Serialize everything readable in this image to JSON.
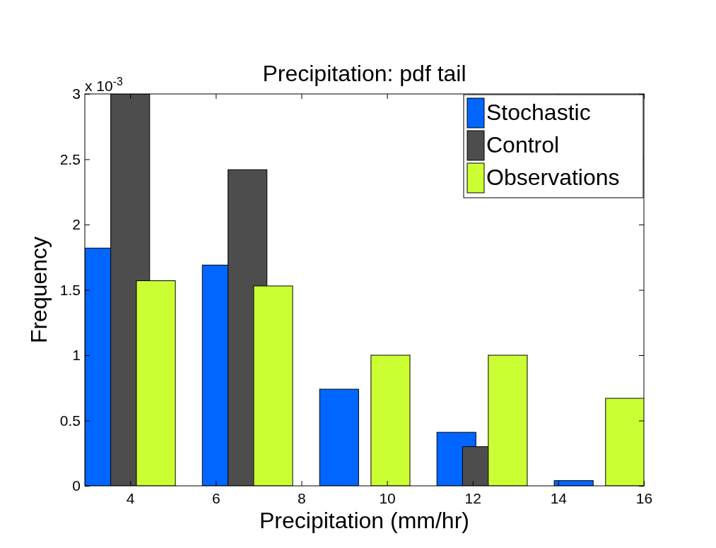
{
  "chart_data": {
    "type": "bar",
    "title": "Precipitation: pdf tail",
    "xlabel": "Precipitation (mm/hr)",
    "ylabel": "Frequency",
    "annotations": [
      "x 10$^{-3}$"
    ],
    "series": [
      {
        "name": "Stochastic",
        "color": "#0066ff",
        "x": [
          3.4,
          6.14,
          8.88,
          11.62,
          14.36
        ],
        "values": [
          1.82,
          1.69,
          0.74,
          0.41,
          0.04
        ]
      },
      {
        "name": "Control",
        "color": "#4d4d4d",
        "x": [
          4.0,
          6.74,
          9.48,
          12.22,
          14.96
        ],
        "values": [
          3.0,
          2.42,
          0,
          0.3,
          0
        ]
      },
      {
        "name": "Observations",
        "color": "#ccff33",
        "x": [
          4.6,
          7.34,
          10.08,
          12.82,
          15.56
        ],
        "values": [
          1.57,
          1.53,
          1.0,
          1.0,
          0.67
        ]
      }
    ],
    "xlim": [
      2.94,
      16
    ],
    "xticks": [
      4,
      6,
      8,
      10,
      12,
      14,
      16
    ],
    "ylim": [
      0,
      3
    ],
    "yticks": [
      0,
      0.5,
      1,
      1.5,
      2,
      2.5,
      3
    ],
    "grid": false,
    "legend": "top right"
  }
}
